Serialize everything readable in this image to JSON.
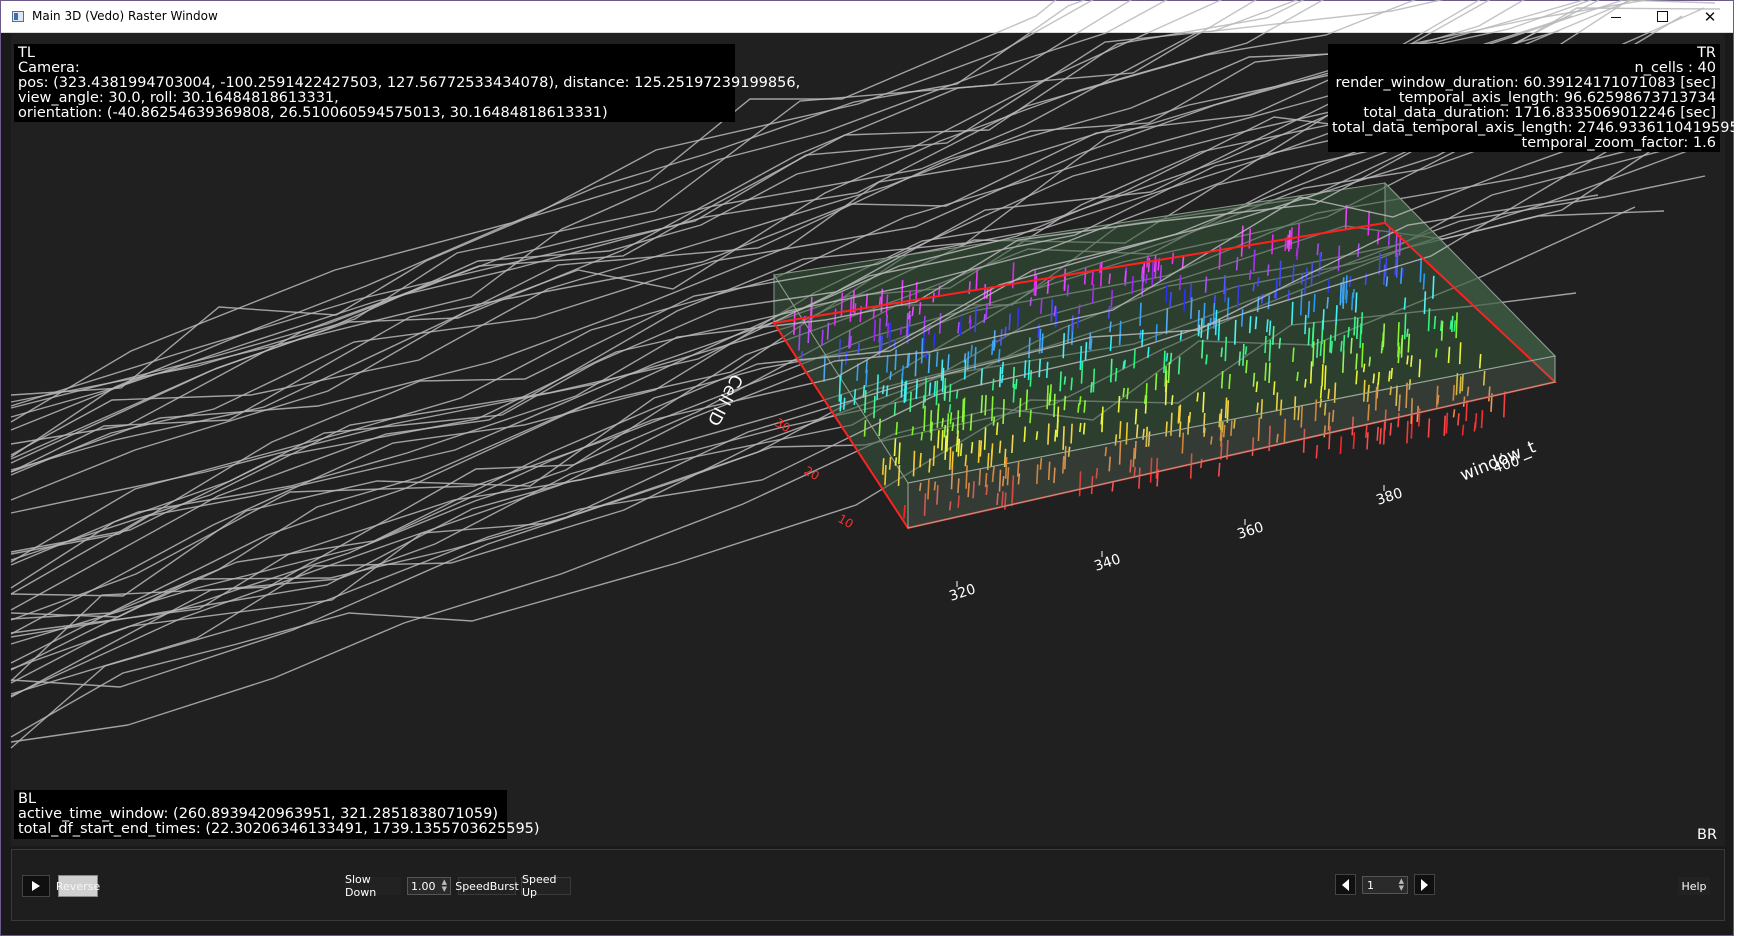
{
  "window": {
    "title": "Main 3D (Vedo) Raster Window"
  },
  "overlays": {
    "tl": {
      "corner": "TL",
      "lines": [
        "Camera:",
        "pos: (323.4381994703004, -100.2591422427503, 127.56772533434078), distance: 125.25197239199856,",
        "view_angle: 30.0, roll: 30.16484818613331,",
        "orientation: (-40.86254639369808, 26.510060594575013, 30.16484818613331)"
      ]
    },
    "tr": {
      "corner": "TR",
      "lines": [
        "n_cells : 40",
        "render_window_duration: 60.39124171071083 [sec]",
        "temporal_axis_length: 96.62598673713734",
        "total_data_duration: 1716.8335069012246 [sec]",
        "total_data_temporal_axis_length: 2746.9336110419595",
        "temporal_zoom_factor: 1.6"
      ]
    },
    "bl": {
      "corner": "BL",
      "lines": [
        "active_time_window: (260.8939420963951, 321.2851838071059)",
        "total_df_start_end_times: (22.30206346133491, 1739.1355703625595)"
      ]
    },
    "br": {
      "corner": "BR"
    }
  },
  "scene": {
    "x_axis_title": "window_t",
    "y_axis_title": "Cell ID",
    "x_ticks": [
      "320",
      "340",
      "360",
      "380",
      "400"
    ],
    "y_ticks": [
      "10",
      "20",
      "30"
    ],
    "colors": {
      "background": "#202020",
      "box_fill": "#2f4f2f",
      "box_edge": "#ff2222",
      "trajectory": "#b8b8b8"
    }
  },
  "controls": {
    "play_icon": "play-icon",
    "reverse_label": "Reverse",
    "slow_down_label": "Slow Down",
    "speed_value": "1.00",
    "speed_burst_label": "SpeedBurst",
    "speed_up_label": "Speed Up",
    "prev_icon": "step-back-icon",
    "frame_value": "1",
    "next_icon": "step-forward-icon",
    "help_label": "Help"
  }
}
